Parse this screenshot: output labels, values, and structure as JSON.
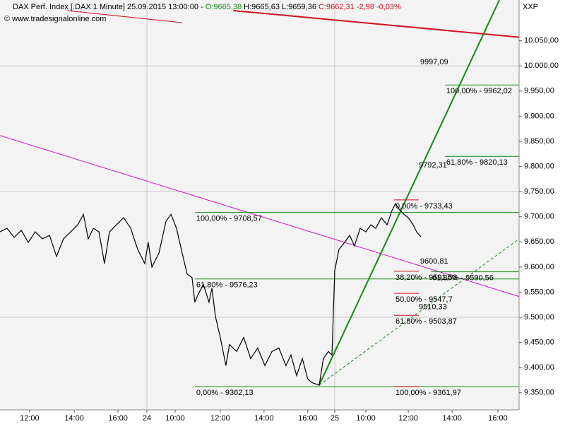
{
  "chart_data": {
    "type": "line",
    "title": "DAX Perf. Index [.DAX  1 Minute] 25.09.2015 13:00:00 -",
    "open_label": "O:9665,38",
    "high_label": "H:9665,63",
    "low_label": "L:9659,36",
    "close_label": "C:9662,31 -2,98 -0,03%",
    "copyright": "© www.tradesignalonline.com",
    "symbol_label": "XXP",
    "xlim": [
      0,
      23.71
    ],
    "ylim": [
      9316,
      10131
    ],
    "xticks": [
      {
        "value": 1.35,
        "label": "12:00"
      },
      {
        "value": 3.39,
        "label": "14:00"
      },
      {
        "value": 5.39,
        "label": "16:00"
      },
      {
        "value": 6.71,
        "label": "24"
      },
      {
        "value": 8.0,
        "label": "10:00"
      },
      {
        "value": 10.06,
        "label": "12:00"
      },
      {
        "value": 12.06,
        "label": "14:00"
      },
      {
        "value": 14.06,
        "label": "16:00"
      },
      {
        "value": 15.29,
        "label": "25"
      },
      {
        "value": 16.71,
        "label": "10:00"
      },
      {
        "value": 18.65,
        "label": "12:00"
      },
      {
        "value": 20.65,
        "label": "14:00"
      },
      {
        "value": 22.74,
        "label": "16:00"
      }
    ],
    "yticks": [
      {
        "value": 9350,
        "label": "9.350,00"
      },
      {
        "value": 9400,
        "label": "9.400,00"
      },
      {
        "value": 9450,
        "label": "9.450,00"
      },
      {
        "value": 9500,
        "label": "9.500,00"
      },
      {
        "value": 9550,
        "label": "9.550,00"
      },
      {
        "value": 9600,
        "label": "9.600,00"
      },
      {
        "value": 9650,
        "label": "9.650,00"
      },
      {
        "value": 9700,
        "label": "9.700,00"
      },
      {
        "value": 9750,
        "label": "9.750,00"
      },
      {
        "value": 9800,
        "label": "9.800,00"
      },
      {
        "value": 9850,
        "label": "9.850,00"
      },
      {
        "value": 9900,
        "label": "9.900,00"
      },
      {
        "value": 9950,
        "label": "9.950,00"
      },
      {
        "value": 10000,
        "label": "10.000,00"
      },
      {
        "value": 10050,
        "label": "10.050,00"
      }
    ],
    "ygrid": [
      9500,
      9750,
      10000
    ],
    "xgrid": [
      6.71,
      15.29
    ],
    "series": [
      {
        "name": "DAX",
        "color": "#000000",
        "x": [
          0,
          0.32,
          0.65,
          0.97,
          1.29,
          1.61,
          1.94,
          2.26,
          2.58,
          2.9,
          3.23,
          3.55,
          3.81,
          4.03,
          4.26,
          4.52,
          4.77,
          5,
          5.32,
          5.65,
          5.97,
          6.29,
          6.61,
          6.77,
          6.94,
          7.26,
          7.58,
          7.81,
          8.06,
          8.32,
          8.55,
          8.77,
          8.9,
          9.03,
          9.29,
          9.55,
          9.68,
          9.84,
          10.06,
          10.19,
          10.32,
          10.48,
          10.81,
          11.13,
          11.45,
          11.77,
          12.1,
          12.42,
          12.74,
          13.06,
          13.29,
          13.55,
          13.81,
          14.06,
          14.26,
          14.58,
          14.77,
          15,
          15.16,
          15.29,
          15.48,
          15.74,
          15.97,
          16.19,
          16.45,
          16.71,
          16.94,
          17.16,
          17.42,
          17.68,
          17.9,
          18.06,
          18.23,
          18.45,
          18.65,
          18.87,
          19.03,
          19.23
        ],
        "values": [
          9670,
          9677,
          9659,
          9673,
          9649,
          9670,
          9656,
          9663,
          9621,
          9656,
          9670,
          9684,
          9705,
          9656,
          9677,
          9670,
          9607,
          9670,
          9684,
          9698,
          9677,
          9635,
          9607,
          9649,
          9600,
          9628,
          9691,
          9705,
          9677,
          9628,
          9586,
          9579,
          9530,
          9544,
          9565,
          9530,
          9558,
          9502,
          9460,
          9432,
          9404,
          9446,
          9432,
          9460,
          9418,
          9439,
          9404,
          9432,
          9439,
          9404,
          9425,
          9384,
          9418,
          9377,
          9370,
          9365,
          9418,
          9432,
          9425,
          9593,
          9635,
          9649,
          9663,
          9642,
          9677,
          9670,
          9684,
          9677,
          9698,
          9684,
          9712,
          9726,
          9715,
          9705,
          9698,
          9684,
          9670,
          9660
        ]
      }
    ],
    "levels": [
      {
        "label": "100,00% - 9708,57",
        "value": 9708.57,
        "x": [
          8.9,
          23.71
        ],
        "color": "#1a8a1a"
      },
      {
        "label": "61,80% - 9576,23",
        "value": 9576.23,
        "x": [
          8.9,
          23.71
        ],
        "color": "#1a8a1a"
      },
      {
        "label": "0,00% - 9362,13",
        "value": 9362.13,
        "x": [
          8.9,
          23.71
        ],
        "color": "#1a8a1a"
      },
      {
        "label": "100,00% - 9962,02",
        "value": 9962.02,
        "x": [
          20.32,
          23.71
        ],
        "color": "#1a8a1a"
      },
      {
        "label": "61,80% - 9820,13",
        "value": 9820.13,
        "x": [
          20.32,
          23.71
        ],
        "color": "#1a8a1a"
      },
      {
        "label": "61,80% - 9590,56",
        "value": 9590.56,
        "x": [
          19.68,
          23.71
        ],
        "color": "#1a8a1a"
      },
      {
        "label": "0,00% - 9733,43",
        "value": 9733.43,
        "x": [
          18.0,
          19.13
        ],
        "color": "#d01020"
      },
      {
        "label": "38,20% - 9591,53",
        "value": 9591.53,
        "x": [
          18.0,
          19.13
        ],
        "color": "#d01020"
      },
      {
        "label": "50,00% - 9547,7",
        "value": 9547.7,
        "x": [
          18.0,
          19.13
        ],
        "color": "#d01020"
      },
      {
        "label": "61,80% - 9503,87",
        "value": 9503.87,
        "x": [
          18.0,
          19.13
        ],
        "color": "#d01020"
      },
      {
        "label": "100,00% - 9361,97",
        "value": 9361.97,
        "x": [
          18.0,
          19.13
        ],
        "color": "#d01020"
      }
    ],
    "price_labels": [
      {
        "value": 9997.09,
        "label": "9997,09",
        "x": 19.19,
        "color": "#d01020"
      },
      {
        "value": 9792.31,
        "label": "9792,31",
        "x": 19.13,
        "color": "#1a8a1a"
      },
      {
        "value": 9600.81,
        "label": "9600,81",
        "x": 19.19,
        "color": "#d010d0"
      },
      {
        "value": 9510.33,
        "label": "9510,33",
        "x": 19.13,
        "color": "#1a8a1a"
      }
    ],
    "trendlines": [
      {
        "x": [
          3.06,
          8.32
        ],
        "y": [
          10110,
          10086
        ],
        "color": "#d01020",
        "width": 1,
        "dashed": false
      },
      {
        "x": [
          10.65,
          23.71
        ],
        "y": [
          10110,
          10057
        ],
        "color": "#d01020",
        "width": 2,
        "dashed": false
      },
      {
        "x": [
          0,
          23.71
        ],
        "y": [
          9861.4,
          9541.4
        ],
        "color": "#d010d0",
        "width": 1,
        "dashed": false
      },
      {
        "x": [
          14.58,
          22.81
        ],
        "y": [
          9365.4,
          10131
        ],
        "color": "#108a10",
        "width": 2,
        "dashed": false
      },
      {
        "x": [
          14.58,
          23.71
        ],
        "y": [
          9365.4,
          9656
        ],
        "color": "#108a10",
        "width": 1,
        "dashed": true
      }
    ]
  }
}
